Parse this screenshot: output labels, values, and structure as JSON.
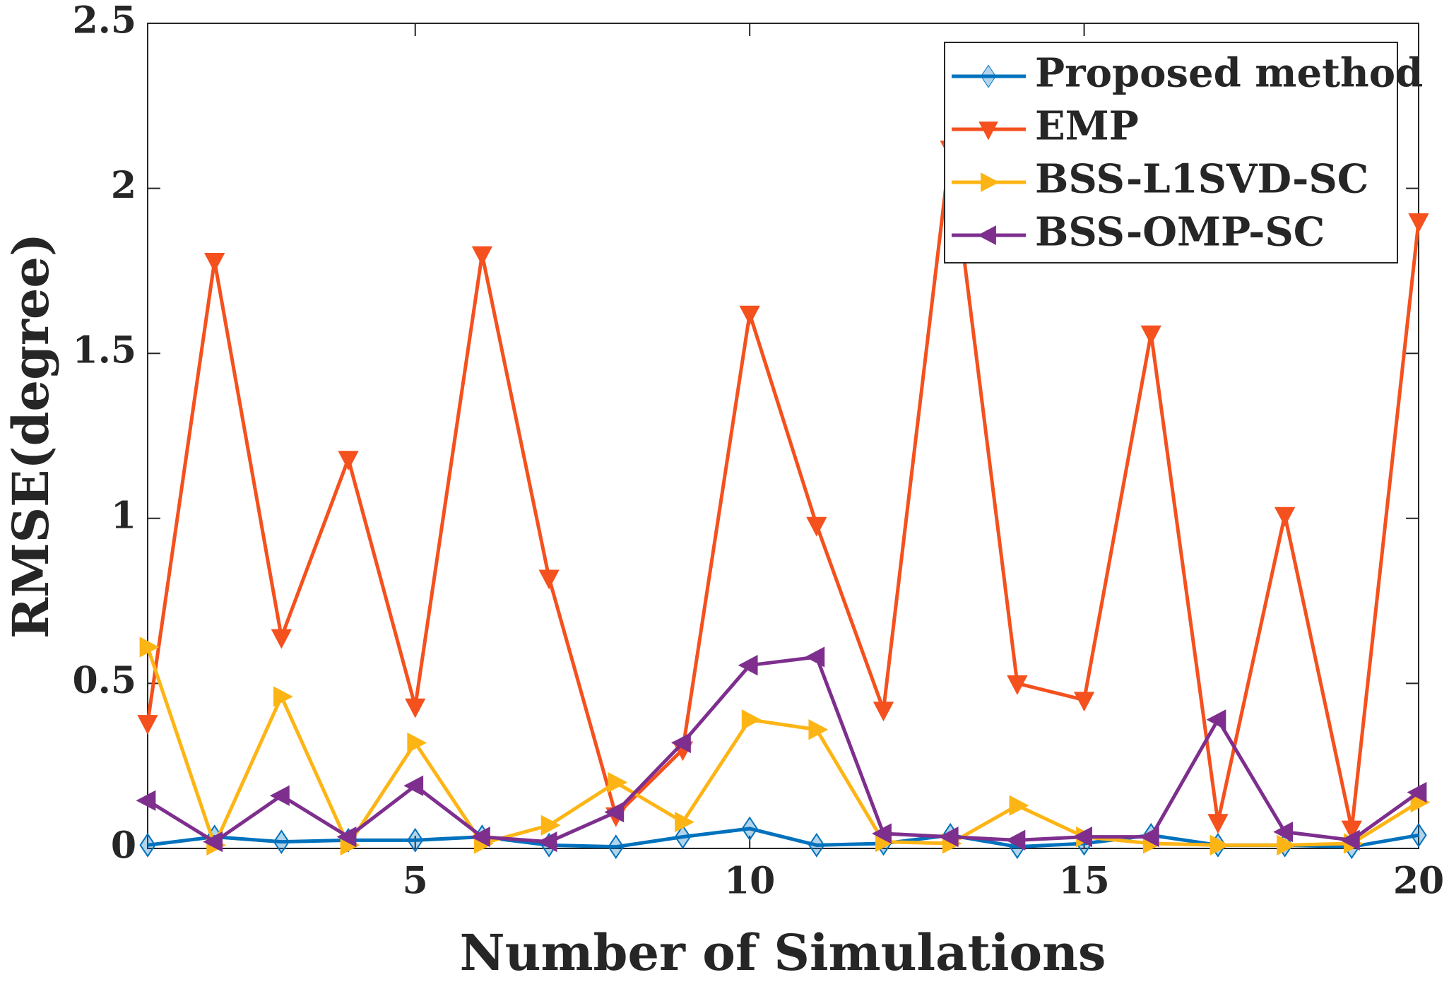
{
  "chart_data": {
    "type": "line",
    "x_label": "Number of Simulations",
    "y_label": "RMSE(degree)",
    "x": [
      1,
      2,
      3,
      4,
      5,
      6,
      7,
      8,
      9,
      10,
      11,
      12,
      13,
      14,
      15,
      16,
      17,
      18,
      19,
      20
    ],
    "xlim": [
      1,
      20
    ],
    "xticks": [
      5,
      10,
      15,
      20
    ],
    "ylim": [
      0,
      2.5
    ],
    "yticks": [
      0,
      0.5,
      1,
      1.5,
      2,
      2.5
    ],
    "legend": "top-right",
    "series": [
      {
        "name": "Proposed method",
        "color": "#0072bd",
        "marker": "diamond",
        "values": [
          0.01,
          0.035,
          0.02,
          0.025,
          0.025,
          0.035,
          0.01,
          0.005,
          0.035,
          0.06,
          0.01,
          0.015,
          0.04,
          0.005,
          0.015,
          0.04,
          0.01,
          0.01,
          0.005,
          0.04
        ]
      },
      {
        "name": "EMP",
        "color": "#f4511e",
        "marker": "triangle-down",
        "values": [
          0.38,
          1.78,
          0.64,
          1.18,
          0.43,
          1.8,
          0.82,
          0.1,
          0.3,
          1.62,
          0.98,
          0.42,
          2.12,
          0.5,
          0.45,
          1.56,
          0.08,
          1.01,
          0.06,
          1.9
        ]
      },
      {
        "name": "BSS-L1SVD-SC",
        "color": "#fdb515",
        "marker": "triangle-right",
        "values": [
          0.61,
          0.01,
          0.46,
          0.01,
          0.32,
          0.015,
          0.07,
          0.2,
          0.08,
          0.39,
          0.36,
          0.02,
          0.015,
          0.13,
          0.035,
          0.015,
          0.01,
          0.01,
          0.015,
          0.14
        ]
      },
      {
        "name": "BSS-OMP-SC",
        "color": "#7e2f8e",
        "marker": "triangle-left",
        "values": [
          0.145,
          0.02,
          0.16,
          0.035,
          0.19,
          0.035,
          0.02,
          0.11,
          0.32,
          0.555,
          0.58,
          0.045,
          0.035,
          0.025,
          0.035,
          0.035,
          0.39,
          0.05,
          0.025,
          0.17
        ]
      }
    ]
  }
}
